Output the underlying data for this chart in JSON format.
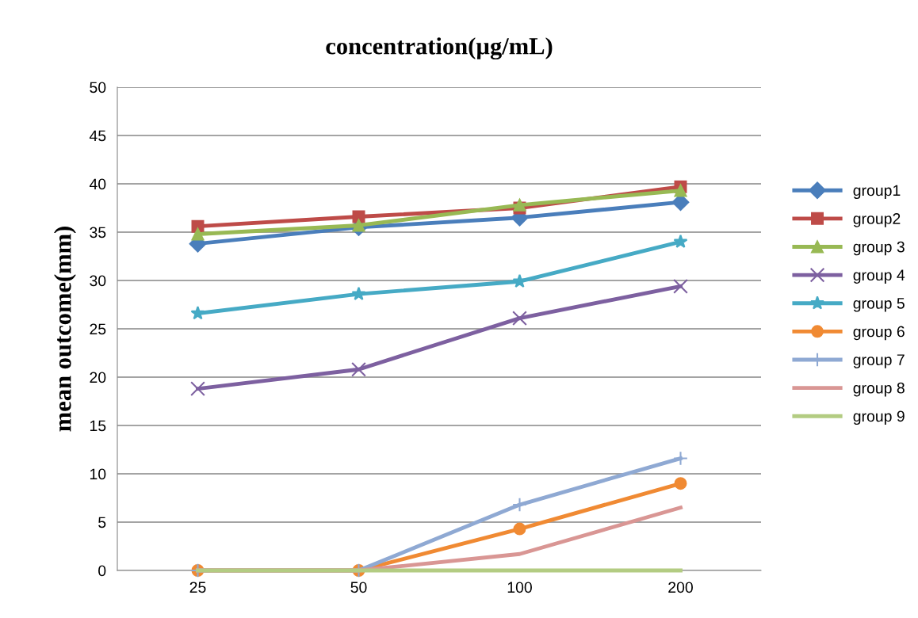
{
  "chart_data": {
    "type": "line",
    "title": "concentration(µg/mL)",
    "ylabel": "mean outcome(mm)",
    "categories": [
      "25",
      "50",
      "100",
      "200"
    ],
    "ylim": [
      0,
      50
    ],
    "yticks": [
      0,
      5,
      10,
      15,
      20,
      25,
      30,
      35,
      40,
      45,
      50
    ],
    "grid": "y",
    "legend": "right",
    "line_style": "solid",
    "series": [
      {
        "name": "group1",
        "color": "#4a7ebb",
        "marker": "diamond",
        "values": [
          33.8,
          35.5,
          36.5,
          38.1
        ]
      },
      {
        "name": "group2",
        "color": "#be4b48",
        "marker": "square",
        "values": [
          35.6,
          36.6,
          37.5,
          39.7
        ]
      },
      {
        "name": "group 3",
        "color": "#98b954",
        "marker": "triangle",
        "values": [
          34.8,
          35.7,
          37.8,
          39.3
        ]
      },
      {
        "name": "group 4",
        "color": "#7d60a0",
        "marker": "cross",
        "values": [
          18.8,
          20.8,
          26.1,
          29.4
        ]
      },
      {
        "name": "group 5",
        "color": "#46aac5",
        "marker": "star",
        "values": [
          26.6,
          28.6,
          29.9,
          34.0
        ]
      },
      {
        "name": "group 6",
        "color": "#f08a33",
        "marker": "circle",
        "values": [
          0,
          0,
          4.3,
          9.0
        ]
      },
      {
        "name": "group 7",
        "color": "#8fa9d3",
        "marker": "plus",
        "values": [
          0,
          0,
          6.8,
          11.6
        ]
      },
      {
        "name": "group 8",
        "color": "#d99694",
        "marker": "none",
        "values": [
          0,
          0,
          1.7,
          6.5
        ]
      },
      {
        "name": "group 9",
        "color": "#b3cc82",
        "marker": "none",
        "values": [
          0,
          0,
          0,
          0
        ]
      }
    ]
  }
}
